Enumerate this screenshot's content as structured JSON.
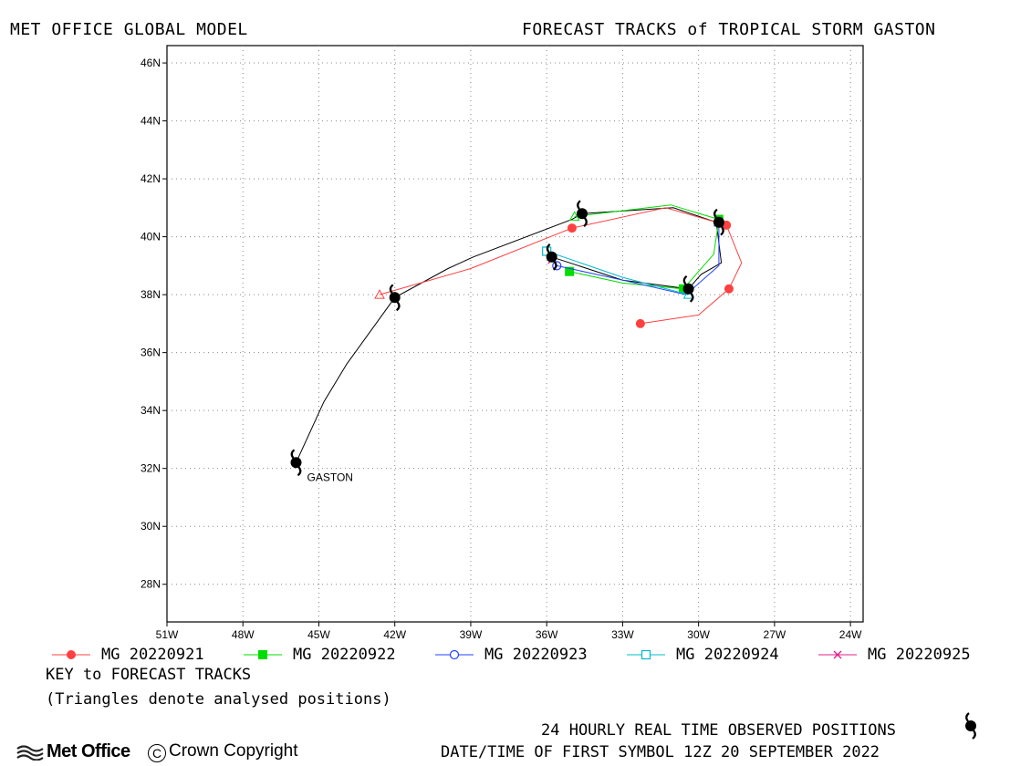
{
  "header": {
    "left_title": "MET OFFICE GLOBAL MODEL",
    "right_title": "FORECAST TRACKS of TROPICAL STORM GASTON"
  },
  "chart_data": {
    "type": "line",
    "title": "FORECAST TRACKS of TROPICAL STORM GASTON",
    "x_axis": {
      "range": [
        -51,
        -23.5
      ],
      "ticks": [
        -51,
        -48,
        -45,
        -42,
        -39,
        -36,
        -33,
        -30,
        -27,
        -24
      ],
      "tick_labels": [
        "51W",
        "48W",
        "45W",
        "42W",
        "39W",
        "36W",
        "33W",
        "30W",
        "27W",
        "24W"
      ]
    },
    "y_axis": {
      "range": [
        26.7,
        46.6
      ],
      "ticks": [
        28,
        30,
        32,
        34,
        36,
        38,
        40,
        42,
        44,
        46
      ],
      "tick_labels": [
        "28N",
        "30N",
        "32N",
        "34N",
        "36N",
        "38N",
        "40N",
        "42N",
        "44N",
        "46N"
      ]
    },
    "grid": true,
    "storm_label": "GASTON",
    "observed_track": {
      "points": [
        [
          -45.9,
          32.2
        ],
        [
          -44.8,
          34.3
        ],
        [
          -43.9,
          35.6
        ],
        [
          -42.0,
          37.9
        ],
        [
          -39.9,
          38.9
        ],
        [
          -38.9,
          39.3
        ],
        [
          -35.0,
          40.6
        ],
        [
          -34.6,
          40.8
        ],
        [
          -31.0,
          41.0
        ],
        [
          -29.3,
          40.5
        ],
        [
          -29.1,
          39.1
        ],
        [
          -29.9,
          38.7
        ],
        [
          -30.4,
          38.2
        ],
        [
          -33.0,
          38.5
        ],
        [
          -35.8,
          39.3
        ]
      ],
      "storm_symbols": [
        [
          -45.9,
          32.2
        ],
        [
          -42.0,
          37.9
        ],
        [
          -34.6,
          40.8
        ],
        [
          -29.2,
          40.5
        ],
        [
          -30.4,
          38.2
        ],
        [
          -35.8,
          39.3
        ]
      ],
      "color": "#000000"
    },
    "series": [
      {
        "name": "MG 20220921",
        "color": "#ff4040",
        "marker": "filled-circle",
        "analysis_point": [
          -42.6,
          38.0
        ],
        "points": [
          [
            -42.6,
            38.0
          ],
          [
            -39.0,
            38.9
          ],
          [
            -35.0,
            40.3
          ],
          [
            -31.3,
            41.0
          ],
          [
            -28.9,
            40.4
          ],
          [
            -28.3,
            39.1
          ],
          [
            -28.8,
            38.2
          ],
          [
            -30.0,
            37.3
          ],
          [
            -32.3,
            37.0
          ]
        ],
        "markers": [
          [
            -35.0,
            40.3
          ],
          [
            -28.9,
            40.4
          ],
          [
            -28.8,
            38.2
          ],
          [
            -32.3,
            37.0
          ]
        ]
      },
      {
        "name": "MG 20220922",
        "color": "#00dd00",
        "marker": "filled-square",
        "analysis_point": [
          -34.9,
          40.7
        ],
        "points": [
          [
            -34.9,
            40.7
          ],
          [
            -31.1,
            41.1
          ],
          [
            -29.2,
            40.6
          ],
          [
            -29.4,
            39.4
          ],
          [
            -30.6,
            38.2
          ],
          [
            -33.0,
            38.4
          ],
          [
            -35.1,
            38.8
          ]
        ],
        "markers": [
          [
            -29.2,
            40.6
          ],
          [
            -30.6,
            38.2
          ],
          [
            -35.1,
            38.8
          ]
        ]
      },
      {
        "name": "MG 20220923",
        "color": "#2040ff",
        "marker": "open-circle",
        "analysis_point": [
          -29.2,
          40.5
        ],
        "points": [
          [
            -29.2,
            40.5
          ],
          [
            -29.2,
            39.0
          ],
          [
            -30.5,
            38.0
          ],
          [
            -33.0,
            38.5
          ],
          [
            -35.6,
            39.0
          ]
        ],
        "markers": [
          [
            -35.6,
            39.0
          ]
        ]
      },
      {
        "name": "MG 20220924",
        "color": "#00bbcc",
        "marker": "open-square",
        "analysis_point": [
          -30.4,
          38.0
        ],
        "points": [
          [
            -30.4,
            38.0
          ],
          [
            -33.0,
            38.6
          ],
          [
            -36.0,
            39.5
          ]
        ],
        "markers": [
          [
            -36.0,
            39.5
          ]
        ]
      },
      {
        "name": "MG 20220925",
        "color": "#dd2288",
        "marker": "cross",
        "analysis_point": [
          -35.8,
          39.2
        ],
        "points": [
          [
            -35.8,
            39.2
          ]
        ],
        "markers": []
      }
    ]
  },
  "notes": {
    "key": "KEY to FORECAST TRACKS",
    "triangles": "(Triangles denote analysed positions)"
  },
  "footer": {
    "observed": "24 HOURLY REAL TIME OBSERVED POSITIONS",
    "datetime": "DATE/TIME OF FIRST SYMBOL 12Z 20 SEPTEMBER 2022",
    "logo_text": "Met Office",
    "copyright": "Crown Copyright"
  }
}
